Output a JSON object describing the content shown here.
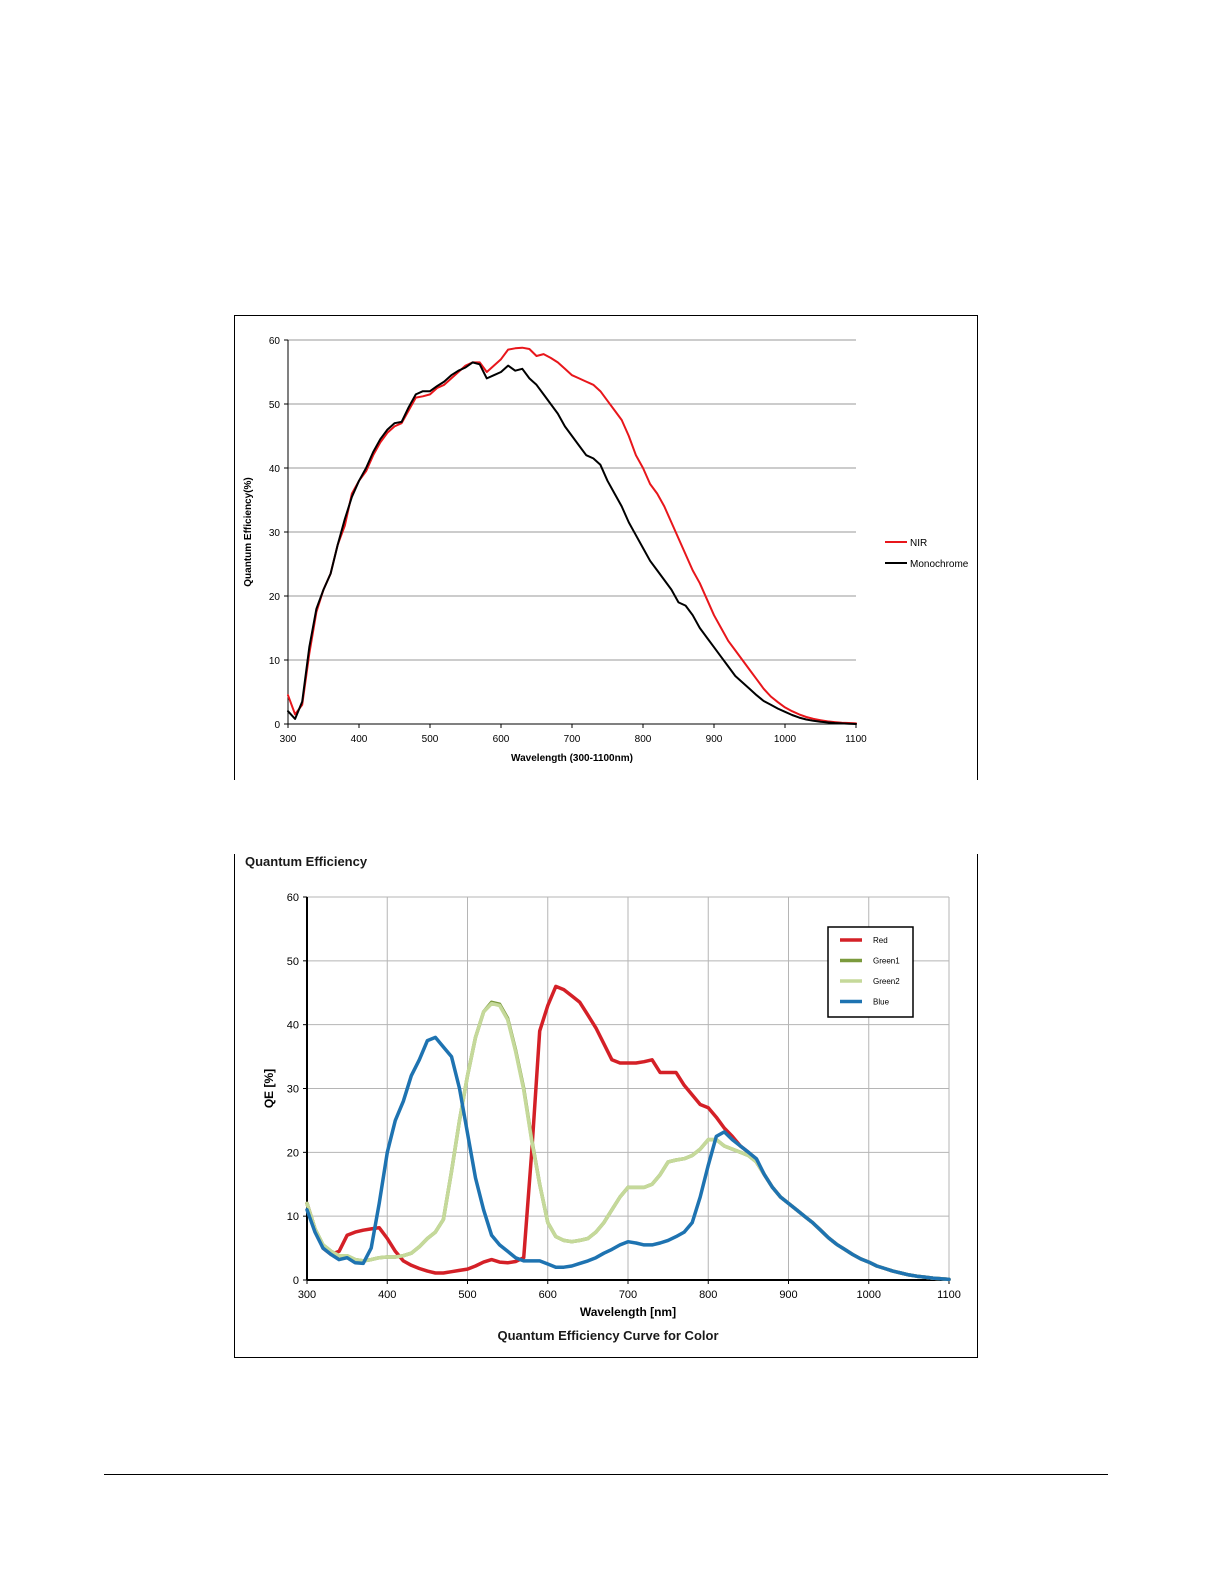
{
  "chart_data": [
    {
      "type": "line",
      "title": "",
      "xlabel": "Wavelength (300-1100nm)",
      "ylabel": "Quantum Efficiency(%)",
      "xlim": [
        300,
        1100
      ],
      "ylim": [
        0,
        60
      ],
      "x_ticks": [
        "300",
        "400",
        "500",
        "600",
        "700",
        "800",
        "900",
        "1000",
        "1100"
      ],
      "y_ticks": [
        "0",
        "10",
        "20",
        "30",
        "40",
        "50",
        "60"
      ],
      "grid": "horizontal",
      "legend_position": "right",
      "series": [
        {
          "name": "NIR",
          "color": "#e8161b",
          "x": [
            300,
            310,
            320,
            330,
            340,
            350,
            360,
            370,
            380,
            390,
            400,
            410,
            420,
            430,
            440,
            450,
            460,
            470,
            480,
            490,
            500,
            510,
            520,
            530,
            540,
            550,
            560,
            570,
            580,
            590,
            600,
            610,
            620,
            630,
            640,
            650,
            660,
            670,
            680,
            690,
            700,
            710,
            720,
            730,
            740,
            750,
            760,
            770,
            780,
            790,
            800,
            810,
            820,
            830,
            840,
            850,
            860,
            870,
            880,
            890,
            900,
            910,
            920,
            930,
            940,
            950,
            960,
            970,
            980,
            990,
            1000,
            1010,
            1020,
            1030,
            1040,
            1050,
            1060,
            1070,
            1080,
            1090,
            1100
          ],
          "y": [
            4.5,
            1.5,
            3,
            11,
            17.5,
            21,
            23.5,
            28,
            31,
            36,
            38,
            39.5,
            42,
            44,
            45.5,
            46.5,
            47,
            49,
            51,
            51.2,
            51.5,
            52.5,
            53,
            54,
            55,
            56,
            56.5,
            56.5,
            55,
            56,
            57,
            58.5,
            58.7,
            58.8,
            58.6,
            57.5,
            57.8,
            57.2,
            56.5,
            55.5,
            54.5,
            54,
            53.5,
            53,
            52,
            50.5,
            49,
            47.5,
            45,
            42,
            40,
            37.5,
            36,
            34,
            31.5,
            29,
            26.5,
            24,
            22,
            19.5,
            17,
            15,
            13,
            11.5,
            10,
            8.5,
            7,
            5.5,
            4.3,
            3.4,
            2.6,
            2,
            1.5,
            1.1,
            0.8,
            0.6,
            0.4,
            0.3,
            0.2,
            0.15,
            0.1
          ]
        },
        {
          "name": "Monochrome",
          "color": "#000000",
          "x": [
            300,
            310,
            320,
            330,
            340,
            350,
            360,
            370,
            380,
            390,
            400,
            410,
            420,
            430,
            440,
            450,
            460,
            470,
            480,
            490,
            500,
            510,
            520,
            530,
            540,
            550,
            560,
            570,
            580,
            590,
            600,
            610,
            620,
            630,
            640,
            650,
            660,
            670,
            680,
            690,
            700,
            710,
            720,
            730,
            740,
            750,
            760,
            770,
            780,
            790,
            800,
            810,
            820,
            830,
            840,
            850,
            860,
            870,
            880,
            890,
            900,
            910,
            920,
            930,
            940,
            950,
            960,
            970,
            980,
            990,
            1000,
            1010,
            1020,
            1030,
            1040,
            1050,
            1060,
            1070,
            1080,
            1090,
            1100
          ],
          "y": [
            2,
            0.8,
            3.5,
            12,
            18,
            21,
            23.5,
            28,
            32,
            35.5,
            38,
            40,
            42.5,
            44.5,
            46,
            47,
            47.2,
            49.5,
            51.5,
            52,
            52,
            52.8,
            53.5,
            54.5,
            55.2,
            55.7,
            56.5,
            56.2,
            54,
            54.5,
            55,
            56,
            55.2,
            55.5,
            54,
            53,
            51.5,
            50,
            48.5,
            46.5,
            45,
            43.5,
            42,
            41.5,
            40.5,
            38,
            36,
            34,
            31.5,
            29.5,
            27.5,
            25.5,
            24,
            22.5,
            21,
            19,
            18.5,
            17,
            15,
            13.5,
            12,
            10.5,
            9,
            7.5,
            6.5,
            5.5,
            4.5,
            3.6,
            3,
            2.4,
            1.9,
            1.4,
            1,
            0.7,
            0.5,
            0.35,
            0.25,
            0.15,
            0.1,
            0.05,
            0
          ]
        }
      ]
    },
    {
      "type": "line",
      "title": "Quantum Efficiency",
      "caption": "Quantum Efficiency Curve for Color",
      "xlabel": "Wavelength [nm]",
      "ylabel": "QE [%]",
      "xlim": [
        300,
        1100
      ],
      "ylim": [
        0,
        60
      ],
      "x_ticks": [
        "300",
        "400",
        "500",
        "600",
        "700",
        "800",
        "900",
        "1000",
        "1100"
      ],
      "y_ticks": [
        "0",
        "10",
        "20",
        "30",
        "40",
        "50",
        "60"
      ],
      "grid": "both",
      "legend_position": "top-right",
      "series": [
        {
          "name": "Red",
          "color": "#d42027",
          "x": [
            300,
            310,
            320,
            330,
            340,
            350,
            360,
            370,
            380,
            390,
            400,
            410,
            420,
            430,
            440,
            450,
            460,
            470,
            480,
            490,
            500,
            510,
            520,
            530,
            540,
            550,
            560,
            570,
            580,
            590,
            600,
            610,
            620,
            630,
            640,
            650,
            660,
            670,
            680,
            690,
            700,
            710,
            720,
            730,
            740,
            750,
            760,
            770,
            780,
            790,
            800,
            810,
            820,
            830,
            840,
            850,
            860,
            870,
            880,
            890,
            900,
            910,
            920,
            930,
            940,
            950,
            960,
            970,
            980,
            990,
            1000,
            1010,
            1020,
            1030,
            1040,
            1050,
            1060,
            1070,
            1080,
            1090,
            1100
          ],
          "y": [
            12,
            8,
            5,
            4,
            4.5,
            7,
            7.5,
            7.8,
            8,
            8.2,
            6.5,
            4.5,
            3,
            2.3,
            1.8,
            1.4,
            1.1,
            1.1,
            1.3,
            1.5,
            1.7,
            2.2,
            2.8,
            3.2,
            2.8,
            2.7,
            2.9,
            3.5,
            20,
            39,
            43,
            46,
            45.5,
            44.5,
            43.5,
            41.5,
            39.5,
            37,
            34.5,
            34,
            34,
            34,
            34.2,
            34.5,
            32.5,
            32.5,
            32.5,
            30.5,
            29,
            27.5,
            27,
            25.5,
            23.8,
            22.5,
            21,
            20,
            18.5,
            16.5,
            14.5,
            13,
            12,
            11,
            10,
            9,
            7.8,
            6.6,
            5.6,
            4.8,
            4,
            3.3,
            2.8,
            2.2,
            1.8,
            1.4,
            1.1,
            0.8,
            0.6,
            0.45,
            0.3,
            0.2,
            0.1
          ]
        },
        {
          "name": "Green1",
          "color": "#7b9a3d",
          "x": [
            300,
            310,
            320,
            330,
            340,
            350,
            360,
            370,
            380,
            390,
            400,
            410,
            420,
            430,
            440,
            450,
            460,
            470,
            480,
            490,
            500,
            510,
            520,
            530,
            540,
            550,
            560,
            570,
            580,
            590,
            600,
            610,
            620,
            630,
            640,
            650,
            660,
            670,
            680,
            690,
            700,
            710,
            720,
            730,
            740,
            750,
            760,
            770,
            780,
            790,
            800,
            810,
            820,
            830,
            840,
            850,
            860,
            870,
            880,
            890,
            900,
            910,
            920,
            930,
            940,
            950,
            960,
            970,
            980,
            990,
            1000,
            1010,
            1020,
            1030,
            1040,
            1050,
            1060,
            1070,
            1080,
            1090,
            1100
          ],
          "y": [
            12,
            8,
            5.5,
            4.5,
            3.8,
            3.8,
            3.2,
            3,
            3.2,
            3.5,
            3.6,
            3.6,
            3.8,
            4.2,
            5.2,
            6.5,
            7.5,
            9.5,
            17,
            25,
            32,
            38,
            42,
            43.5,
            43.2,
            41,
            36,
            30,
            22,
            15,
            9,
            6.8,
            6.2,
            6,
            6.2,
            6.5,
            7.5,
            9,
            11,
            13,
            14.5,
            14.5,
            14.5,
            15,
            16.5,
            18.5,
            18.8,
            19,
            19.5,
            20.5,
            22,
            22,
            21,
            20.5,
            20,
            19.5,
            18.5,
            16.5,
            14.5,
            13,
            12,
            11,
            10,
            9,
            7.8,
            6.6,
            5.6,
            4.8,
            4,
            3.3,
            2.8,
            2.2,
            1.8,
            1.4,
            1.1,
            0.8,
            0.6,
            0.45,
            0.3,
            0.2,
            0.1
          ]
        },
        {
          "name": "Green2",
          "color": "#c5d99a",
          "x": [
            300,
            310,
            320,
            330,
            340,
            350,
            360,
            370,
            380,
            390,
            400,
            410,
            420,
            430,
            440,
            450,
            460,
            470,
            480,
            490,
            500,
            510,
            520,
            530,
            540,
            550,
            560,
            570,
            580,
            590,
            600,
            610,
            620,
            630,
            640,
            650,
            660,
            670,
            680,
            690,
            700,
            710,
            720,
            730,
            740,
            750,
            760,
            770,
            780,
            790,
            800,
            810,
            820,
            830,
            840,
            850,
            860,
            870,
            880,
            890,
            900,
            910,
            920,
            930,
            940,
            950,
            960,
            970,
            980,
            990,
            1000,
            1010,
            1020,
            1030,
            1040,
            1050,
            1060,
            1070,
            1080,
            1090,
            1100
          ],
          "y": [
            12,
            8,
            5.5,
            4.5,
            3.8,
            3.8,
            3.2,
            3,
            3.2,
            3.5,
            3.6,
            3.6,
            3.8,
            4.2,
            5.2,
            6.5,
            7.5,
            9.5,
            17,
            25,
            32,
            38,
            42,
            43.3,
            43,
            40.8,
            35.8,
            29.8,
            21.8,
            15,
            9,
            6.8,
            6.2,
            6,
            6.2,
            6.5,
            7.5,
            9,
            11,
            13,
            14.5,
            14.5,
            14.5,
            15,
            16.5,
            18.5,
            18.8,
            19,
            19.5,
            20.5,
            22,
            22,
            21,
            20.5,
            20,
            19.5,
            18.5,
            16.5,
            14.5,
            13,
            12,
            11,
            10,
            9,
            7.8,
            6.6,
            5.6,
            4.8,
            4,
            3.3,
            2.8,
            2.2,
            1.8,
            1.4,
            1.1,
            0.8,
            0.6,
            0.45,
            0.3,
            0.2,
            0.1
          ]
        },
        {
          "name": "Blue",
          "color": "#1e73b1",
          "x": [
            300,
            310,
            320,
            330,
            340,
            350,
            360,
            370,
            380,
            390,
            400,
            410,
            420,
            430,
            440,
            450,
            460,
            470,
            480,
            490,
            500,
            510,
            520,
            530,
            540,
            550,
            560,
            570,
            580,
            590,
            600,
            610,
            620,
            630,
            640,
            650,
            660,
            670,
            680,
            690,
            700,
            710,
            720,
            730,
            740,
            750,
            760,
            770,
            780,
            790,
            800,
            810,
            820,
            830,
            840,
            850,
            860,
            870,
            880,
            890,
            900,
            910,
            920,
            930,
            940,
            950,
            960,
            970,
            980,
            990,
            1000,
            1010,
            1020,
            1030,
            1040,
            1050,
            1060,
            1070,
            1080,
            1090,
            1100
          ],
          "y": [
            11,
            7.5,
            5,
            4,
            3.2,
            3.5,
            2.7,
            2.6,
            5,
            12,
            20,
            25,
            28,
            32,
            34.5,
            37.5,
            38,
            36.5,
            35,
            30,
            23,
            16,
            11,
            7,
            5.5,
            4.5,
            3.5,
            3,
            3,
            3,
            2.5,
            2,
            2,
            2.2,
            2.6,
            3,
            3.5,
            4.2,
            4.8,
            5.5,
            6,
            5.8,
            5.5,
            5.5,
            5.8,
            6.2,
            6.8,
            7.5,
            9,
            13,
            18,
            22.5,
            23.2,
            22,
            21,
            20,
            19,
            16.5,
            14.5,
            13,
            12,
            11,
            10,
            9,
            7.8,
            6.6,
            5.6,
            4.8,
            4,
            3.3,
            2.8,
            2.2,
            1.8,
            1.4,
            1.1,
            0.8,
            0.6,
            0.45,
            0.3,
            0.2,
            0.1
          ]
        }
      ]
    }
  ]
}
